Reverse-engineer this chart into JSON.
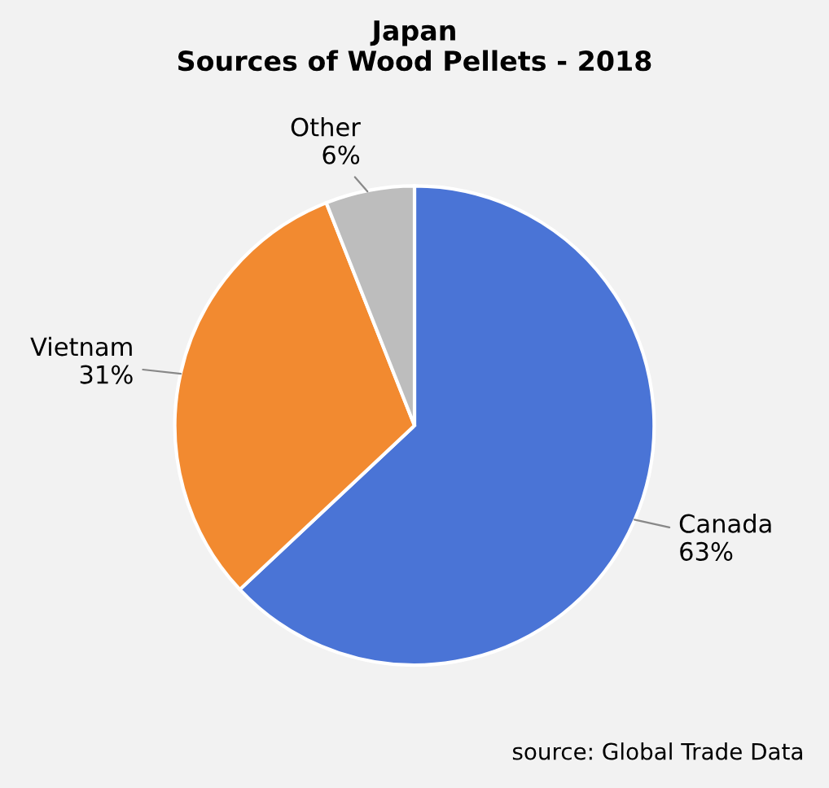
{
  "chart_data": {
    "type": "pie",
    "title": "Japan\nSources of Wood Pellets - 2018",
    "categories": [
      "Canada",
      "Vietnam",
      "Other"
    ],
    "values": [
      63,
      31,
      6
    ],
    "value_labels": [
      "63%",
      "31%",
      "6%"
    ],
    "colors": [
      "#4a74d6",
      "#f28a30",
      "#bdbdbd"
    ],
    "annotations": [
      "source: Global Trade Data"
    ]
  }
}
